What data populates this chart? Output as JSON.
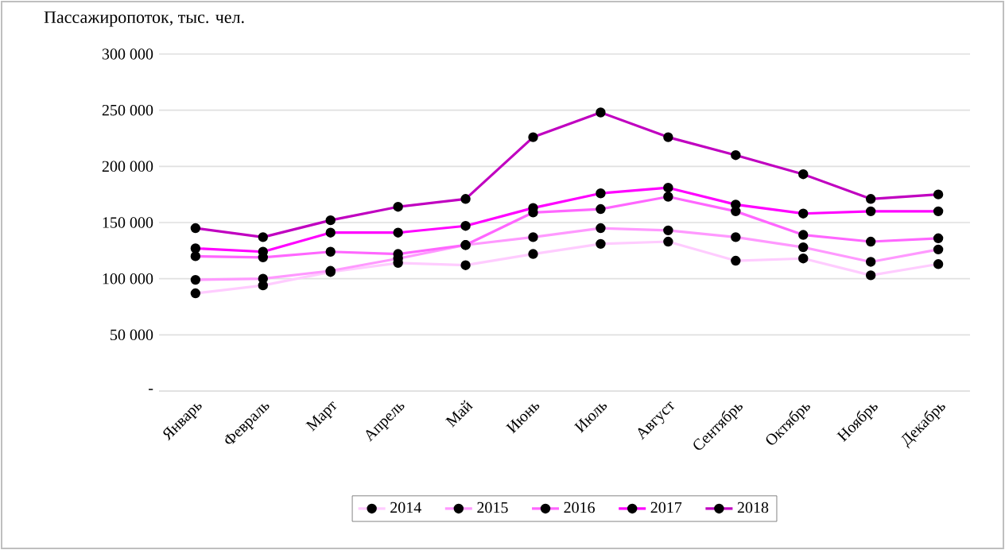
{
  "chart_data": {
    "type": "line",
    "title": "Пассажиропоток, тыс. чел.",
    "categories": [
      "Январь",
      "Февраль",
      "Март",
      "Апрель",
      "Май",
      "Июнь",
      "Июль",
      "Август",
      "Сентябрь",
      "Октябрь",
      "Ноябрь",
      "Декабрь"
    ],
    "series": [
      {
        "name": "2014",
        "color": "#ffccff",
        "values": [
          87000,
          94000,
          106000,
          114000,
          112000,
          122000,
          131000,
          133000,
          116000,
          118000,
          103000,
          113000
        ]
      },
      {
        "name": "2015",
        "color": "#ff99ff",
        "values": [
          99000,
          100000,
          107000,
          118000,
          130000,
          137000,
          145000,
          143000,
          137000,
          128000,
          115000,
          126000
        ]
      },
      {
        "name": "2016",
        "color": "#ff66ff",
        "values": [
          120000,
          119000,
          124000,
          122000,
          130000,
          159000,
          162000,
          173000,
          160000,
          139000,
          133000,
          136000
        ]
      },
      {
        "name": "2017",
        "color": "#ff00ff",
        "values": [
          127000,
          124000,
          141000,
          141000,
          147000,
          163000,
          176000,
          181000,
          166000,
          158000,
          160000,
          160000
        ]
      },
      {
        "name": "2018",
        "color": "#c000c0",
        "values": [
          145000,
          137000,
          152000,
          164000,
          171000,
          226000,
          248000,
          226000,
          210000,
          193000,
          171000,
          175000
        ]
      }
    ],
    "ylim": [
      0,
      300000
    ],
    "yticks": [
      {
        "value": 0,
        "label": "-"
      },
      {
        "value": 50000,
        "label": "50 000"
      },
      {
        "value": 100000,
        "label": "100 000"
      },
      {
        "value": 150000,
        "label": "150 000"
      },
      {
        "value": 200000,
        "label": "200 000"
      },
      {
        "value": 250000,
        "label": "250 000"
      },
      {
        "value": 300000,
        "label": "300 000"
      }
    ],
    "grid": "y",
    "legend": "bottom",
    "marker": "circle"
  }
}
